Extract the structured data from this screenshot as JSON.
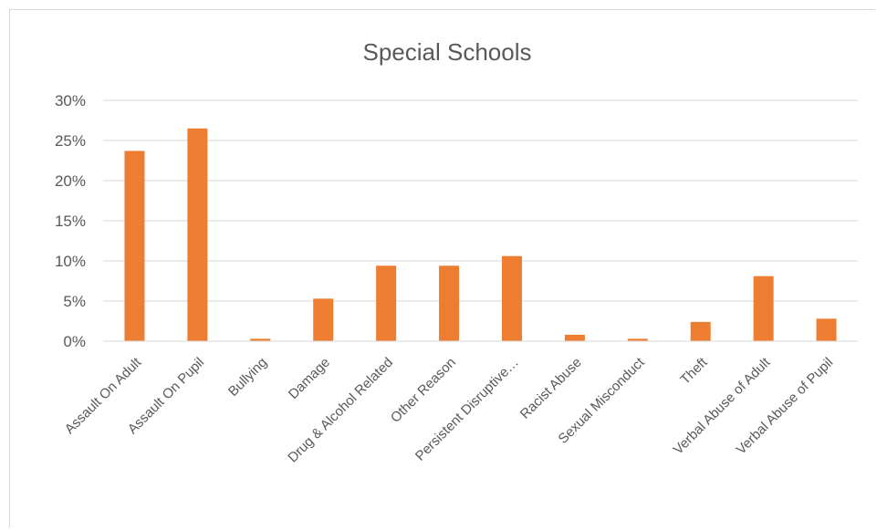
{
  "chart_data": {
    "type": "bar",
    "title": "Special Schools",
    "xlabel": "",
    "ylabel": "",
    "ylim": [
      0,
      30
    ],
    "yticks": [
      "0%",
      "5%",
      "10%",
      "15%",
      "20%",
      "25%",
      "30%"
    ],
    "grid": true,
    "legend": "none",
    "bar_color": "#ED7D31",
    "categories": [
      "Assault On Adult",
      "Assault On Pupil",
      "Bullying",
      "Damage",
      "Drug & Alcohol Related",
      "Other Reason",
      "Persistent Disruptive…",
      "Racist Abuse",
      "Sexual Misconduct",
      "Theft",
      "Verbal Abuse of Adult",
      "Verbal Abuse of Pupil"
    ],
    "values": [
      23.7,
      26.5,
      0.3,
      5.3,
      9.4,
      9.4,
      10.6,
      0.8,
      0.3,
      2.4,
      8.1,
      2.8
    ]
  }
}
